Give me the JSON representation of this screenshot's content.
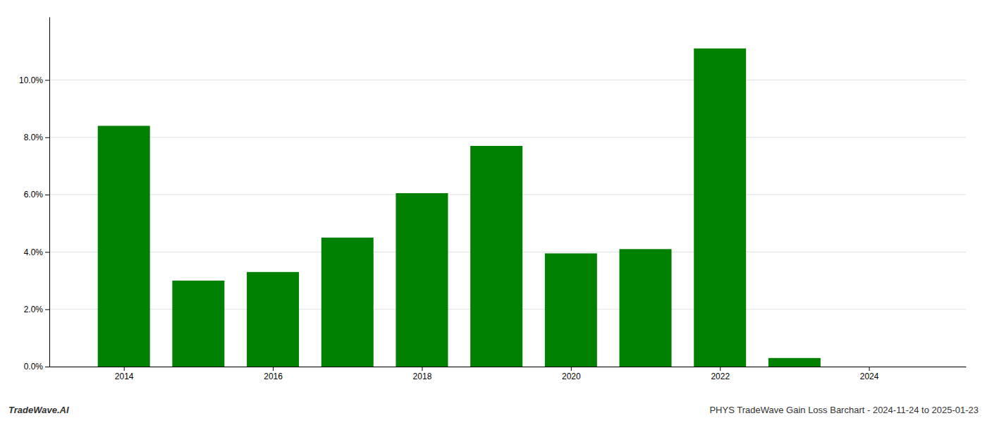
{
  "chart_data": {
    "type": "bar",
    "x": [
      2014,
      2015,
      2016,
      2017,
      2018,
      2019,
      2020,
      2021,
      2022,
      2023,
      2024
    ],
    "values": [
      0.084,
      0.03,
      0.033,
      0.045,
      0.0605,
      0.077,
      0.0395,
      0.041,
      0.111,
      0.003,
      0.0
    ],
    "color": "#008000",
    "xlim": [
      2013.0,
      2025.3
    ],
    "xticks": [
      2014,
      2016,
      2018,
      2020,
      2022,
      2024
    ],
    "ylim": [
      0,
      0.122
    ],
    "yticks": [
      {
        "value": 0.0,
        "label": "0.0%"
      },
      {
        "value": 0.02,
        "label": "2.0%"
      },
      {
        "value": 0.04,
        "label": "4.0%"
      },
      {
        "value": 0.06,
        "label": "6.0%"
      },
      {
        "value": 0.08,
        "label": "8.0%"
      },
      {
        "value": 0.1,
        "label": "10.0%"
      }
    ],
    "grid": true,
    "annotations": [
      "TradeWave.AI",
      "PHYS TradeWave Gain Loss Barchart - 2024-11-24 to 2025-01-23"
    ]
  }
}
